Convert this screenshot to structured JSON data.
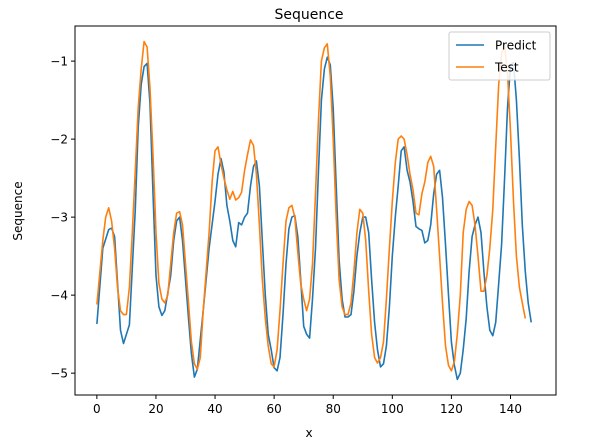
{
  "chart_data": {
    "type": "line",
    "title": "Sequence",
    "xlabel": "x",
    "ylabel": "Sequence",
    "xlim": [
      -7.4,
      155.4
    ],
    "ylim": [
      -5.28,
      -0.55
    ],
    "xticks": [
      0,
      20,
      40,
      60,
      80,
      100,
      120,
      140
    ],
    "xtick_labels": [
      "0",
      "20",
      "40",
      "60",
      "80",
      "100",
      "120",
      "140"
    ],
    "yticks": [
      -1,
      -2,
      -3,
      -4,
      -5
    ],
    "ytick_labels": [
      "−1",
      "−2",
      "−3",
      "−4",
      "−5"
    ],
    "grid": false,
    "legend_position": "top-right",
    "series": [
      {
        "name": "Predict",
        "color": "#1f77b4",
        "points": [
          [
            0,
            -4.37
          ],
          [
            2,
            -3.4
          ],
          [
            4,
            -3.16
          ],
          [
            5,
            -3.14
          ],
          [
            6,
            -3.25
          ],
          [
            8,
            -4.45
          ],
          [
            9,
            -4.62
          ],
          [
            11,
            -4.38
          ],
          [
            13,
            -2.9
          ],
          [
            14,
            -1.85
          ],
          [
            15,
            -1.3
          ],
          [
            16,
            -1.07
          ],
          [
            17,
            -1.03
          ],
          [
            18,
            -1.55
          ],
          [
            19,
            -2.7
          ],
          [
            20,
            -3.75
          ],
          [
            21,
            -4.15
          ],
          [
            22,
            -4.26
          ],
          [
            23,
            -4.2
          ],
          [
            25,
            -3.75
          ],
          [
            26,
            -3.3
          ],
          [
            27,
            -3.05
          ],
          [
            28,
            -3.0
          ],
          [
            29,
            -3.3
          ],
          [
            30,
            -3.8
          ],
          [
            31,
            -4.3
          ],
          [
            32,
            -4.75
          ],
          [
            33,
            -5.05
          ],
          [
            34,
            -4.95
          ],
          [
            36,
            -4.2
          ],
          [
            38,
            -3.4
          ],
          [
            40,
            -2.8
          ],
          [
            41,
            -2.45
          ],
          [
            42,
            -2.25
          ],
          [
            43,
            -2.42
          ],
          [
            44,
            -2.85
          ],
          [
            45,
            -3.05
          ],
          [
            46,
            -3.3
          ],
          [
            47,
            -3.38
          ],
          [
            48,
            -3.07
          ],
          [
            49,
            -3.1
          ],
          [
            50,
            -3.0
          ],
          [
            51,
            -2.95
          ],
          [
            52,
            -2.6
          ],
          [
            53,
            -2.35
          ],
          [
            54,
            -2.28
          ],
          [
            55,
            -2.6
          ],
          [
            56,
            -3.3
          ],
          [
            57,
            -4.0
          ],
          [
            58,
            -4.5
          ],
          [
            59,
            -4.7
          ],
          [
            60,
            -4.93
          ],
          [
            61,
            -4.97
          ],
          [
            62,
            -4.8
          ],
          [
            63,
            -4.25
          ],
          [
            64,
            -3.6
          ],
          [
            65,
            -3.15
          ],
          [
            66,
            -3.0
          ],
          [
            67,
            -2.98
          ],
          [
            68,
            -3.25
          ],
          [
            69,
            -3.8
          ],
          [
            70,
            -4.4
          ],
          [
            71,
            -4.5
          ],
          [
            72,
            -4.55
          ],
          [
            73,
            -4.05
          ],
          [
            74,
            -3.4
          ],
          [
            75,
            -2.4
          ],
          [
            76,
            -1.5
          ],
          [
            77,
            -1.1
          ],
          [
            78,
            -0.95
          ],
          [
            79,
            -1.05
          ],
          [
            80,
            -1.6
          ],
          [
            81,
            -2.6
          ],
          [
            82,
            -3.55
          ],
          [
            83,
            -4.05
          ],
          [
            84,
            -4.28
          ],
          [
            85,
            -4.28
          ],
          [
            86,
            -4.25
          ],
          [
            87,
            -3.95
          ],
          [
            88,
            -3.5
          ],
          [
            89,
            -3.2
          ],
          [
            90,
            -3.0
          ],
          [
            91,
            -3.0
          ],
          [
            92,
            -3.2
          ],
          [
            93,
            -3.8
          ],
          [
            94,
            -4.35
          ],
          [
            95,
            -4.7
          ],
          [
            96,
            -4.92
          ],
          [
            97,
            -4.88
          ],
          [
            98,
            -4.65
          ],
          [
            99,
            -4.15
          ],
          [
            100,
            -3.5
          ],
          [
            101,
            -3.0
          ],
          [
            102,
            -2.6
          ],
          [
            103,
            -2.15
          ],
          [
            104,
            -2.1
          ],
          [
            105,
            -2.4
          ],
          [
            106,
            -2.55
          ],
          [
            107,
            -2.8
          ],
          [
            108,
            -3.12
          ],
          [
            109,
            -3.15
          ],
          [
            110,
            -3.17
          ],
          [
            111,
            -3.33
          ],
          [
            112,
            -3.3
          ],
          [
            113,
            -3.1
          ],
          [
            114,
            -2.7
          ],
          [
            115,
            -2.45
          ],
          [
            116,
            -2.4
          ],
          [
            117,
            -2.75
          ],
          [
            118,
            -3.35
          ],
          [
            119,
            -4.0
          ],
          [
            120,
            -4.6
          ],
          [
            121,
            -4.9
          ],
          [
            122,
            -5.08
          ],
          [
            123,
            -5.0
          ],
          [
            124,
            -4.7
          ],
          [
            125,
            -4.3
          ],
          [
            126,
            -3.7
          ],
          [
            127,
            -3.25
          ],
          [
            128,
            -3.1
          ],
          [
            129,
            -3.0
          ],
          [
            130,
            -3.2
          ],
          [
            131,
            -3.7
          ],
          [
            132,
            -4.15
          ],
          [
            133,
            -4.45
          ],
          [
            134,
            -4.52
          ],
          [
            135,
            -4.35
          ],
          [
            136,
            -3.85
          ],
          [
            137,
            -3.35
          ],
          [
            138,
            -2.5
          ],
          [
            139,
            -1.6
          ],
          [
            140,
            -1.05
          ],
          [
            141,
            -1.02
          ],
          [
            142,
            -1.5
          ],
          [
            143,
            -2.25
          ],
          [
            144,
            -3.1
          ],
          [
            145,
            -3.7
          ],
          [
            146,
            -4.1
          ],
          [
            147,
            -4.35
          ]
        ]
      },
      {
        "name": "Test",
        "color": "#ff7f0e",
        "points": [
          [
            0,
            -4.12
          ],
          [
            2,
            -3.3
          ],
          [
            3,
            -3.0
          ],
          [
            4,
            -2.88
          ],
          [
            5,
            -3.05
          ],
          [
            6,
            -3.4
          ],
          [
            7,
            -3.9
          ],
          [
            8,
            -4.2
          ],
          [
            9,
            -4.25
          ],
          [
            10,
            -4.25
          ],
          [
            11,
            -3.9
          ],
          [
            12,
            -3.2
          ],
          [
            13,
            -2.4
          ],
          [
            14,
            -1.6
          ],
          [
            15,
            -1.1
          ],
          [
            16,
            -0.75
          ],
          [
            17,
            -0.82
          ],
          [
            18,
            -1.35
          ],
          [
            19,
            -2.2
          ],
          [
            20,
            -3.2
          ],
          [
            21,
            -3.85
          ],
          [
            22,
            -4.05
          ],
          [
            23,
            -4.1
          ],
          [
            24,
            -4.0
          ],
          [
            25,
            -3.6
          ],
          [
            26,
            -3.2
          ],
          [
            27,
            -2.95
          ],
          [
            28,
            -2.93
          ],
          [
            29,
            -3.1
          ],
          [
            30,
            -3.6
          ],
          [
            31,
            -4.1
          ],
          [
            32,
            -4.6
          ],
          [
            33,
            -4.88
          ],
          [
            34,
            -4.95
          ],
          [
            35,
            -4.8
          ],
          [
            36,
            -4.2
          ],
          [
            38,
            -3.2
          ],
          [
            39,
            -2.55
          ],
          [
            40,
            -2.15
          ],
          [
            41,
            -2.1
          ],
          [
            42,
            -2.32
          ],
          [
            43,
            -2.5
          ],
          [
            44,
            -2.65
          ],
          [
            45,
            -2.77
          ],
          [
            46,
            -2.67
          ],
          [
            47,
            -2.78
          ],
          [
            48,
            -2.75
          ],
          [
            49,
            -2.68
          ],
          [
            50,
            -2.4
          ],
          [
            51,
            -2.2
          ],
          [
            52,
            -2.01
          ],
          [
            53,
            -2.08
          ],
          [
            54,
            -2.45
          ],
          [
            55,
            -3.1
          ],
          [
            56,
            -3.8
          ],
          [
            57,
            -4.3
          ],
          [
            58,
            -4.65
          ],
          [
            59,
            -4.88
          ],
          [
            60,
            -4.92
          ],
          [
            61,
            -4.7
          ],
          [
            62,
            -4.2
          ],
          [
            63,
            -3.6
          ],
          [
            64,
            -3.05
          ],
          [
            65,
            -2.88
          ],
          [
            66,
            -2.85
          ],
          [
            67,
            -3.0
          ],
          [
            68,
            -3.45
          ],
          [
            69,
            -3.85
          ],
          [
            70,
            -4.05
          ],
          [
            71,
            -4.2
          ],
          [
            72,
            -4.05
          ],
          [
            73,
            -3.6
          ],
          [
            74,
            -2.7
          ],
          [
            75,
            -1.75
          ],
          [
            76,
            -1.0
          ],
          [
            77,
            -0.83
          ],
          [
            78,
            -0.78
          ],
          [
            79,
            -1.2
          ],
          [
            80,
            -2.0
          ],
          [
            81,
            -3.0
          ],
          [
            82,
            -3.8
          ],
          [
            83,
            -4.15
          ],
          [
            84,
            -4.25
          ],
          [
            85,
            -4.25
          ],
          [
            86,
            -4.1
          ],
          [
            87,
            -3.7
          ],
          [
            88,
            -3.2
          ],
          [
            89,
            -2.9
          ],
          [
            90,
            -2.95
          ],
          [
            91,
            -3.3
          ],
          [
            92,
            -3.95
          ],
          [
            93,
            -4.5
          ],
          [
            94,
            -4.8
          ],
          [
            95,
            -4.87
          ],
          [
            96,
            -4.8
          ],
          [
            97,
            -4.6
          ],
          [
            98,
            -4.05
          ],
          [
            99,
            -3.4
          ],
          [
            100,
            -2.8
          ],
          [
            101,
            -2.3
          ],
          [
            102,
            -2.0
          ],
          [
            103,
            -1.96
          ],
          [
            104,
            -2.0
          ],
          [
            105,
            -2.2
          ],
          [
            106,
            -2.45
          ],
          [
            107,
            -2.65
          ],
          [
            108,
            -2.95
          ],
          [
            109,
            -2.97
          ],
          [
            110,
            -2.7
          ],
          [
            111,
            -2.55
          ],
          [
            112,
            -2.3
          ],
          [
            113,
            -2.22
          ],
          [
            114,
            -2.35
          ],
          [
            115,
            -2.9
          ],
          [
            116,
            -3.5
          ],
          [
            117,
            -4.1
          ],
          [
            118,
            -4.65
          ],
          [
            119,
            -4.9
          ],
          [
            120,
            -4.97
          ],
          [
            121,
            -4.85
          ],
          [
            122,
            -4.5
          ],
          [
            123,
            -4.0
          ],
          [
            124,
            -3.2
          ],
          [
            125,
            -2.9
          ],
          [
            126,
            -2.8
          ],
          [
            127,
            -2.85
          ],
          [
            128,
            -3.1
          ],
          [
            129,
            -3.5
          ],
          [
            130,
            -3.95
          ],
          [
            131,
            -3.95
          ],
          [
            132,
            -3.75
          ],
          [
            133,
            -3.4
          ],
          [
            134,
            -2.9
          ],
          [
            135,
            -2.1
          ],
          [
            136,
            -1.3
          ],
          [
            137,
            -0.9
          ],
          [
            138,
            -0.8
          ],
          [
            139,
            -1.15
          ],
          [
            140,
            -1.9
          ],
          [
            141,
            -2.8
          ],
          [
            142,
            -3.5
          ],
          [
            143,
            -3.9
          ],
          [
            144,
            -4.1
          ],
          [
            145,
            -4.3
          ]
        ]
      }
    ]
  }
}
